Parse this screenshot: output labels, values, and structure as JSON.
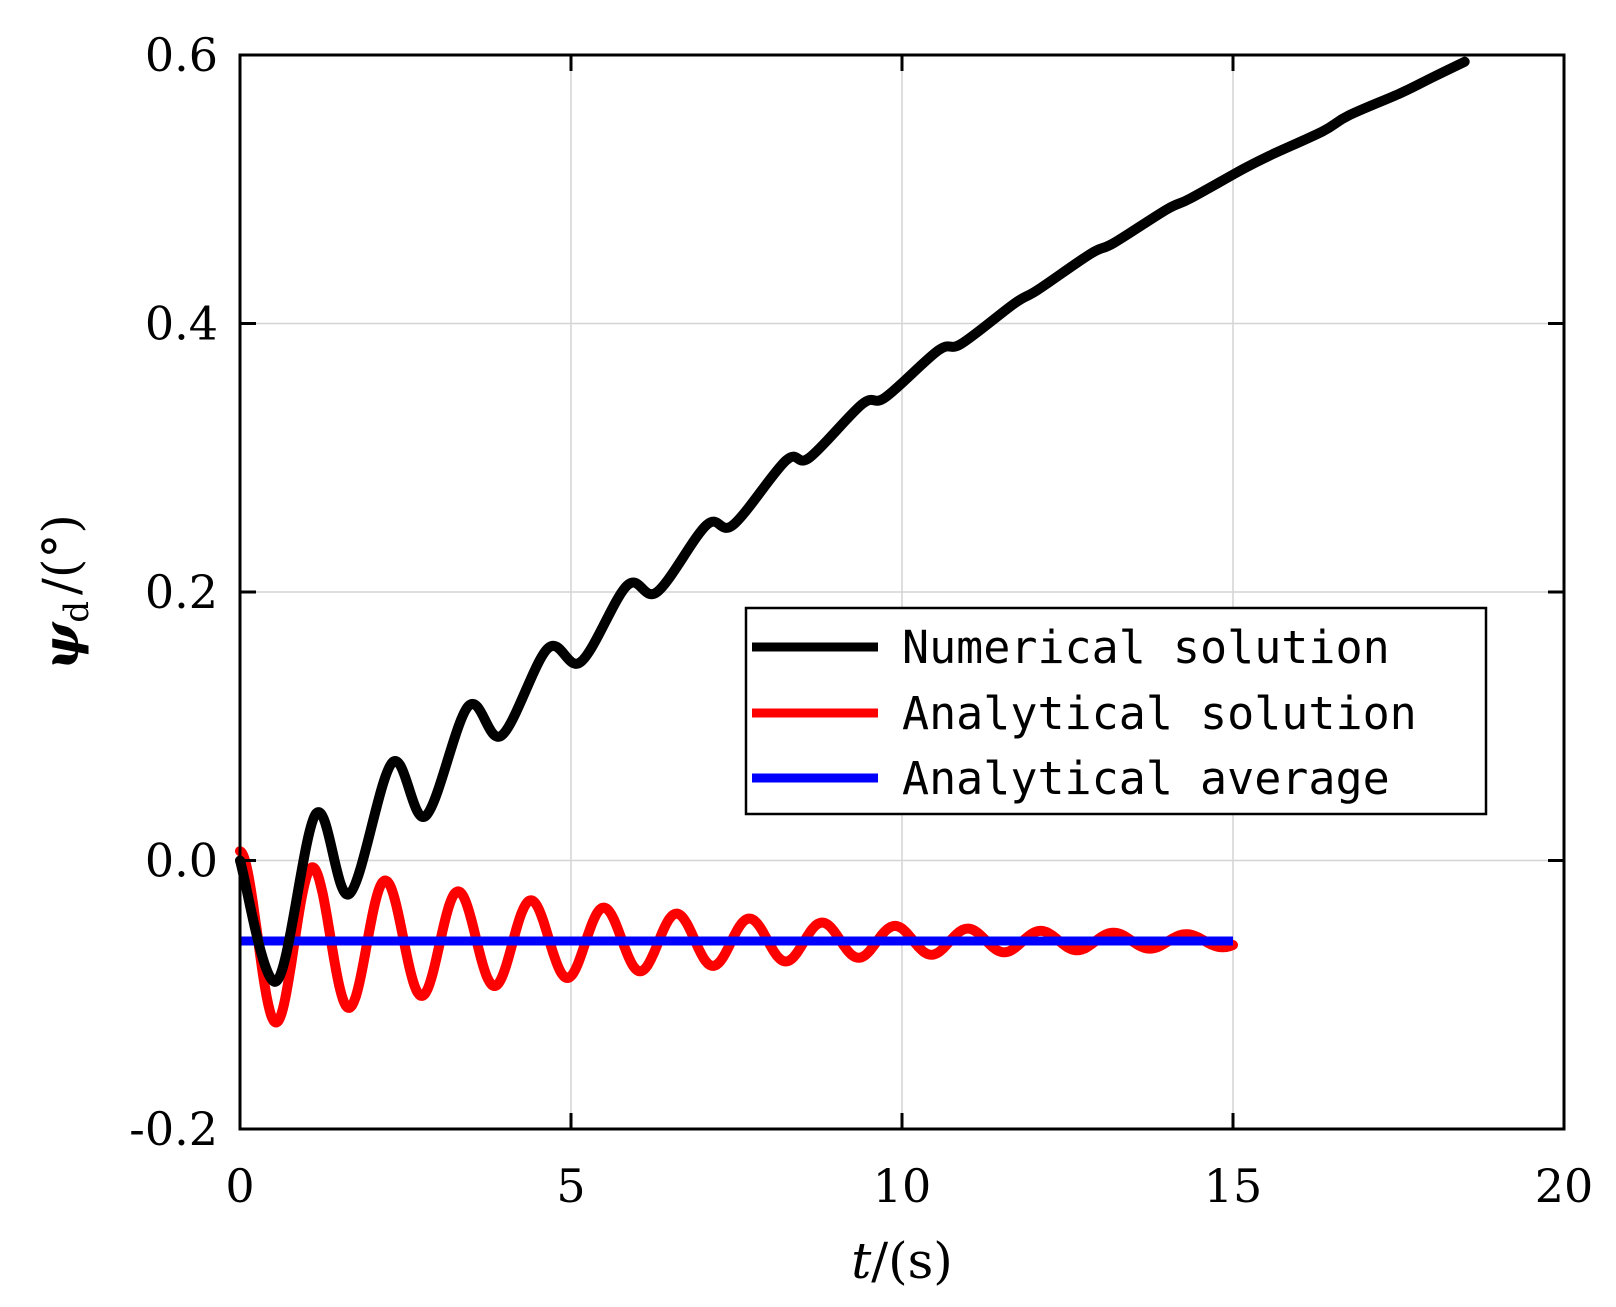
{
  "chart_data": {
    "type": "line",
    "title": "",
    "xlabel": {
      "var": "t",
      "unit": "/(s)"
    },
    "ylabel": {
      "var": "ψ",
      "sub": "d",
      "unit": "/(°)"
    },
    "xlim": [
      0,
      20
    ],
    "ylim": [
      -0.2,
      0.6
    ],
    "x_ticks": [
      0,
      5,
      10,
      15,
      20
    ],
    "x_tick_labels": [
      "0",
      "5",
      "10",
      "15",
      "20"
    ],
    "y_ticks": [
      -0.2,
      0.0,
      0.2,
      0.4,
      0.6
    ],
    "y_tick_labels": [
      "-0.2",
      "0.0",
      "0.2",
      "0.4",
      "0.6"
    ],
    "grid": true,
    "legend_position": "center-right",
    "series": [
      {
        "name": "Numerical solution",
        "color": "#000000",
        "t": [
          0.0,
          0.55,
          1.15,
          1.65,
          2.3,
          2.8,
          3.45,
          3.95,
          4.65,
          5.15,
          5.85,
          6.3,
          7.05,
          7.45,
          8.25,
          8.6,
          9.4,
          9.75,
          10.55,
          10.9,
          11.7,
          12.05,
          12.85,
          13.2,
          14.0,
          14.35,
          15.15,
          15.55,
          16.35,
          16.75,
          17.55,
          18.0,
          18.5
        ],
        "values": [
          0.0,
          -0.09,
          0.035,
          -0.025,
          0.073,
          0.033,
          0.115,
          0.093,
          0.158,
          0.148,
          0.205,
          0.2,
          0.25,
          0.25,
          0.298,
          0.3,
          0.34,
          0.345,
          0.38,
          0.385,
          0.415,
          0.425,
          0.452,
          0.46,
          0.485,
          0.493,
          0.515,
          0.525,
          0.543,
          0.555,
          0.572,
          0.583,
          0.595
        ]
      },
      {
        "name": "Analytical solution",
        "color": "#ff0000",
        "amplitude": 0.067,
        "offset": -0.06,
        "decay": 0.18,
        "period": 1.1,
        "t_range": [
          0,
          15
        ]
      },
      {
        "name": "Analytical average",
        "color": "#0000ff",
        "value": -0.06,
        "t_range": [
          0,
          15
        ]
      }
    ]
  }
}
